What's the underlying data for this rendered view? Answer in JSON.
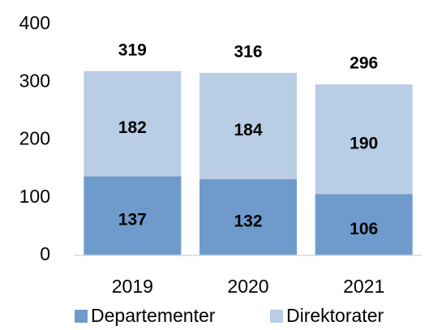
{
  "chart_data": {
    "type": "stacked_bar",
    "categories": [
      "2019",
      "2020",
      "2021"
    ],
    "series": [
      {
        "name": "Departementer",
        "color": "#6e9bcc",
        "values": [
          137,
          132,
          106
        ]
      },
      {
        "name": "Direktorater",
        "color": "#b9cde5",
        "values": [
          182,
          184,
          190
        ]
      }
    ],
    "totals": [
      319,
      316,
      296
    ],
    "ylim": [
      0,
      400
    ],
    "yticks": [
      0,
      100,
      200,
      300,
      400
    ],
    "grid": false,
    "legend": "bottom"
  }
}
